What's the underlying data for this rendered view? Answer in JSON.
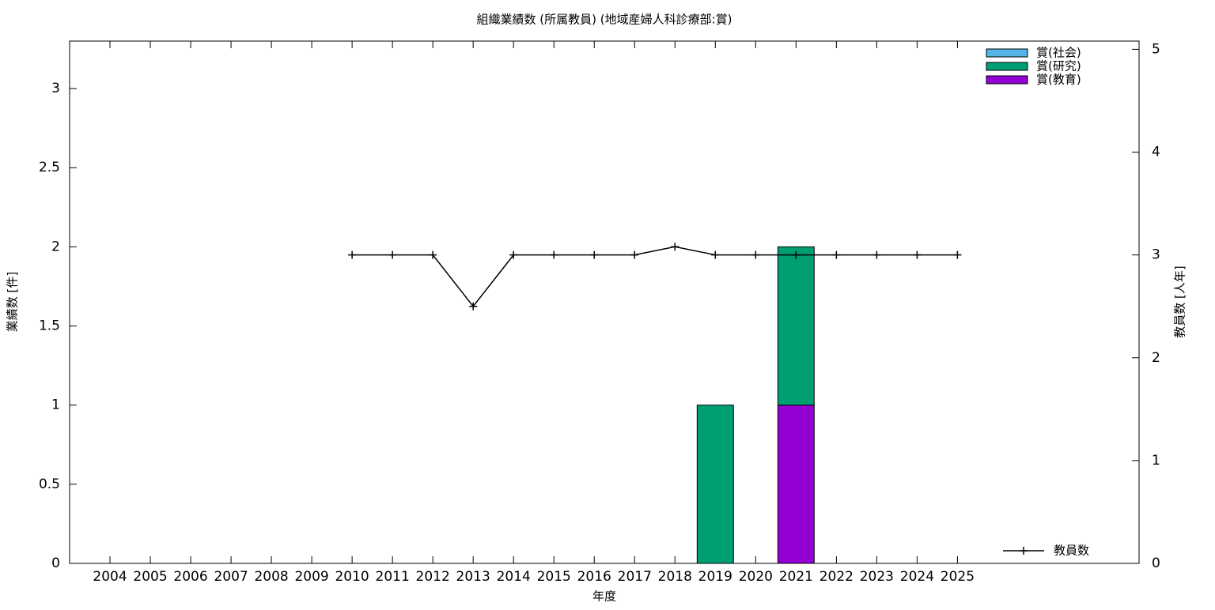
{
  "chart_data": {
    "type": "bar",
    "title": "組織業績数 (所属教員) (地域産婦人科診療部:賞)",
    "x_label": "年度",
    "y_label": "業績数 [件]",
    "y2_label": "教員数 [人年]",
    "categories": [
      "2004",
      "2005",
      "2006",
      "2007",
      "2008",
      "2009",
      "2010",
      "2011",
      "2012",
      "2013",
      "2014",
      "2015",
      "2016",
      "2017",
      "2018",
      "2019",
      "2020",
      "2021",
      "2022",
      "2023",
      "2024",
      "2025"
    ],
    "series": [
      {
        "name": "賞(社会)",
        "color": "#56b4e9",
        "values": [
          0,
          0,
          0,
          0,
          0,
          0,
          0,
          0,
          0,
          0,
          0,
          0,
          0,
          0,
          0,
          0,
          0,
          0,
          0,
          0,
          0,
          0
        ]
      },
      {
        "name": "賞(研究)",
        "color": "#009e73",
        "values": [
          0,
          0,
          0,
          0,
          0,
          0,
          0,
          0,
          0,
          0,
          0,
          0,
          0,
          0,
          0,
          1,
          0,
          1,
          0,
          0,
          0,
          0
        ]
      },
      {
        "name": "賞(教育)",
        "color": "#9400d3",
        "values": [
          0,
          0,
          0,
          0,
          0,
          0,
          0,
          0,
          0,
          0,
          0,
          0,
          0,
          0,
          0,
          0,
          0,
          1,
          0,
          0,
          0,
          0
        ]
      },
      {
        "name": "教員数",
        "color": "#000000",
        "axis": "y2",
        "values": [
          null,
          null,
          null,
          null,
          null,
          null,
          3,
          3,
          3,
          2.5,
          3,
          3,
          3,
          3,
          3.08,
          3,
          3,
          3,
          3,
          3,
          3,
          3
        ]
      }
    ],
    "ylim": [
      0,
      3.3
    ],
    "yticks": [
      0,
      0.5,
      1,
      1.5,
      2,
      2.5,
      3
    ],
    "y2lim": [
      0,
      5.08
    ],
    "y2ticks": [
      0,
      1,
      2,
      3,
      4,
      5
    ],
    "stacked": true,
    "grid": false,
    "legend": "top-right"
  }
}
